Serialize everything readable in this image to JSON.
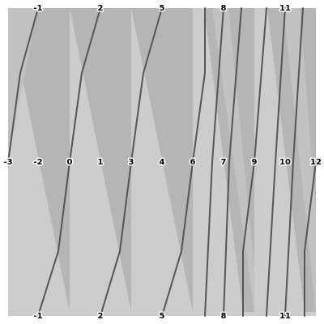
{
  "colors": {
    "light": "#cccccc",
    "dark": "#b5b5b5",
    "strand": "#555555"
  },
  "top_labels": [
    "-1",
    "2",
    "5",
    "8",
    "11"
  ],
  "middle_labels": [
    "-3",
    "-2",
    "0",
    "1",
    "3",
    "4",
    "6",
    "7",
    "9",
    "10",
    "12"
  ],
  "bottom_labels": [
    "-1",
    "2",
    "5",
    "8",
    "11"
  ]
}
